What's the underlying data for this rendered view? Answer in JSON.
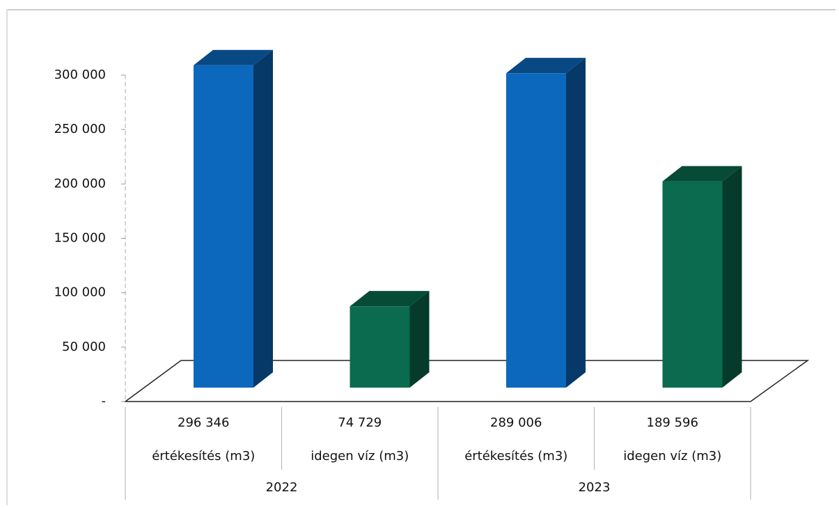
{
  "chart_data": {
    "type": "bar3d",
    "categories": [
      "értékesítés (m3)",
      "idegen víz (m3)",
      "értékesítés (m3)",
      "idegen víz (m3)"
    ],
    "groups": [
      "2022",
      "2023"
    ],
    "values": [
      296346,
      74729,
      289006,
      189596
    ],
    "value_labels": [
      "296 346",
      "74 729",
      "289 006",
      "189 596"
    ],
    "colors": [
      "#0b68bd",
      "#0a6b4e",
      "#0b68bd",
      "#0a6b4e"
    ],
    "ylim": [
      0,
      300000
    ],
    "yticks": [
      {
        "value": 0,
        "label": "-"
      },
      {
        "value": 50000,
        "label": "50 000"
      },
      {
        "value": 100000,
        "label": "100 000"
      },
      {
        "value": 150000,
        "label": "150 000"
      },
      {
        "value": 200000,
        "label": "200 000"
      },
      {
        "value": 250000,
        "label": "250 000"
      },
      {
        "value": 300000,
        "label": "300 000"
      }
    ],
    "grid": false
  }
}
